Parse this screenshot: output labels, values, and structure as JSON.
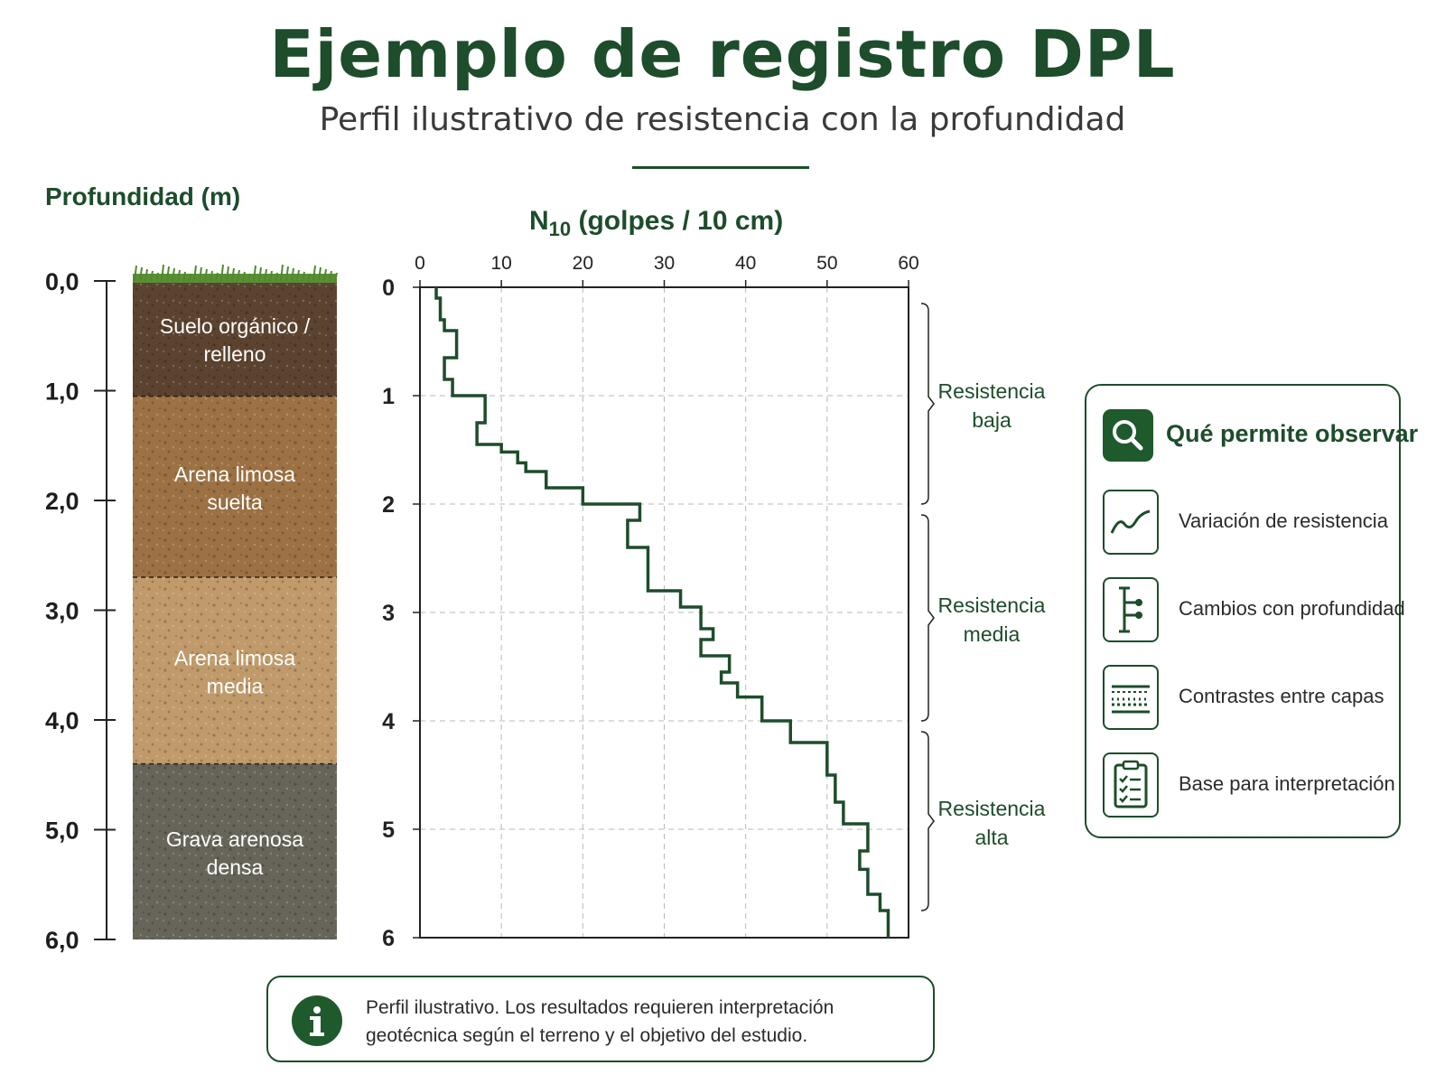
{
  "header": {
    "title": "Ejemplo de registro DPL",
    "subtitle": "Perfil ilustrativo de resistencia con la profundidad"
  },
  "depth_axis": {
    "title": "Profundidad (m)",
    "ticks": [
      "0,0",
      "1,0",
      "2,0",
      "3,0",
      "4,0",
      "5,0",
      "6,0"
    ]
  },
  "soil_layers": [
    {
      "label": "Suelo orgánico / relleno",
      "top": 0.0,
      "bottom": 1.05,
      "color": "#5c4330"
    },
    {
      "label": "Arena limosa suelta",
      "top": 1.05,
      "bottom": 2.7,
      "color": "#9c7143"
    },
    {
      "label": "Arena limosa media",
      "top": 2.7,
      "bottom": 4.4,
      "color": "#c09a6a"
    },
    {
      "label": "Grava arenosa densa",
      "top": 4.4,
      "bottom": 6.0,
      "color": "#67645a"
    }
  ],
  "chart_data": {
    "type": "line",
    "xlabel_main": "N",
    "xlabel_sub": "10",
    "xlabel_rest": " (golpes / 10 cm)",
    "xlim": [
      0,
      60
    ],
    "ylim": [
      0,
      6
    ],
    "x_ticks": [
      "0",
      "10",
      "20",
      "30",
      "40",
      "50",
      "60"
    ],
    "y_ticks": [
      "0",
      "1",
      "2",
      "3",
      "4",
      "5",
      "6"
    ],
    "grid": true,
    "line_color": "#1d4d2b",
    "profile": [
      {
        "depth_top": 0.0,
        "depth_bottom": 0.1,
        "n10": 2
      },
      {
        "depth_top": 0.1,
        "depth_bottom": 0.3,
        "n10": 2.5
      },
      {
        "depth_top": 0.3,
        "depth_bottom": 0.4,
        "n10": 3
      },
      {
        "depth_top": 0.4,
        "depth_bottom": 0.65,
        "n10": 4.5
      },
      {
        "depth_top": 0.65,
        "depth_bottom": 0.85,
        "n10": 3
      },
      {
        "depth_top": 0.85,
        "depth_bottom": 1.0,
        "n10": 4
      },
      {
        "depth_top": 1.0,
        "depth_bottom": 1.25,
        "n10": 8
      },
      {
        "depth_top": 1.25,
        "depth_bottom": 1.45,
        "n10": 7
      },
      {
        "depth_top": 1.45,
        "depth_bottom": 1.52,
        "n10": 10
      },
      {
        "depth_top": 1.52,
        "depth_bottom": 1.62,
        "n10": 12
      },
      {
        "depth_top": 1.62,
        "depth_bottom": 1.7,
        "n10": 13
      },
      {
        "depth_top": 1.7,
        "depth_bottom": 1.85,
        "n10": 15.5
      },
      {
        "depth_top": 1.85,
        "depth_bottom": 2.0,
        "n10": 20
      },
      {
        "depth_top": 2.0,
        "depth_bottom": 2.15,
        "n10": 27
      },
      {
        "depth_top": 2.15,
        "depth_bottom": 2.4,
        "n10": 25.5
      },
      {
        "depth_top": 2.4,
        "depth_bottom": 2.8,
        "n10": 28
      },
      {
        "depth_top": 2.8,
        "depth_bottom": 2.95,
        "n10": 32
      },
      {
        "depth_top": 2.95,
        "depth_bottom": 3.15,
        "n10": 34.5
      },
      {
        "depth_top": 3.15,
        "depth_bottom": 3.25,
        "n10": 36
      },
      {
        "depth_top": 3.25,
        "depth_bottom": 3.4,
        "n10": 34.5
      },
      {
        "depth_top": 3.4,
        "depth_bottom": 3.55,
        "n10": 38
      },
      {
        "depth_top": 3.55,
        "depth_bottom": 3.65,
        "n10": 37
      },
      {
        "depth_top": 3.65,
        "depth_bottom": 3.78,
        "n10": 39
      },
      {
        "depth_top": 3.78,
        "depth_bottom": 4.0,
        "n10": 42
      },
      {
        "depth_top": 4.0,
        "depth_bottom": 4.2,
        "n10": 45.5
      },
      {
        "depth_top": 4.2,
        "depth_bottom": 4.5,
        "n10": 50
      },
      {
        "depth_top": 4.5,
        "depth_bottom": 4.75,
        "n10": 51
      },
      {
        "depth_top": 4.75,
        "depth_bottom": 4.95,
        "n10": 52
      },
      {
        "depth_top": 4.95,
        "depth_bottom": 5.2,
        "n10": 55
      },
      {
        "depth_top": 5.2,
        "depth_bottom": 5.37,
        "n10": 54
      },
      {
        "depth_top": 5.37,
        "depth_bottom": 5.6,
        "n10": 55
      },
      {
        "depth_top": 5.6,
        "depth_bottom": 5.75,
        "n10": 56.5
      },
      {
        "depth_top": 5.75,
        "depth_bottom": 6.0,
        "n10": 57.5
      }
    ],
    "zones": [
      {
        "label_line1": "Resistencia",
        "label_line2": "baja",
        "depth_top": 0.15,
        "depth_bottom": 2.0
      },
      {
        "label_line1": "Resistencia",
        "label_line2": "media",
        "depth_top": 2.1,
        "depth_bottom": 4.0
      },
      {
        "label_line1": "Resistencia",
        "label_line2": "alta",
        "depth_top": 4.1,
        "depth_bottom": 5.75
      }
    ]
  },
  "legend": {
    "title": "Qué permite observar",
    "items": [
      {
        "icon": "trend-line-icon",
        "label": "Variación de resistencia"
      },
      {
        "icon": "depth-probe-icon",
        "label": "Cambios con profundidad"
      },
      {
        "icon": "soil-layers-icon",
        "label": "Contrastes entre capas"
      },
      {
        "icon": "clipboard-check-icon",
        "label": "Base para interpretación"
      }
    ]
  },
  "note": {
    "icon": "info-icon",
    "text": "Perfil ilustrativo. Los resultados requieren interpretación geotécnica según el terreno y el objetivo del estudio."
  }
}
